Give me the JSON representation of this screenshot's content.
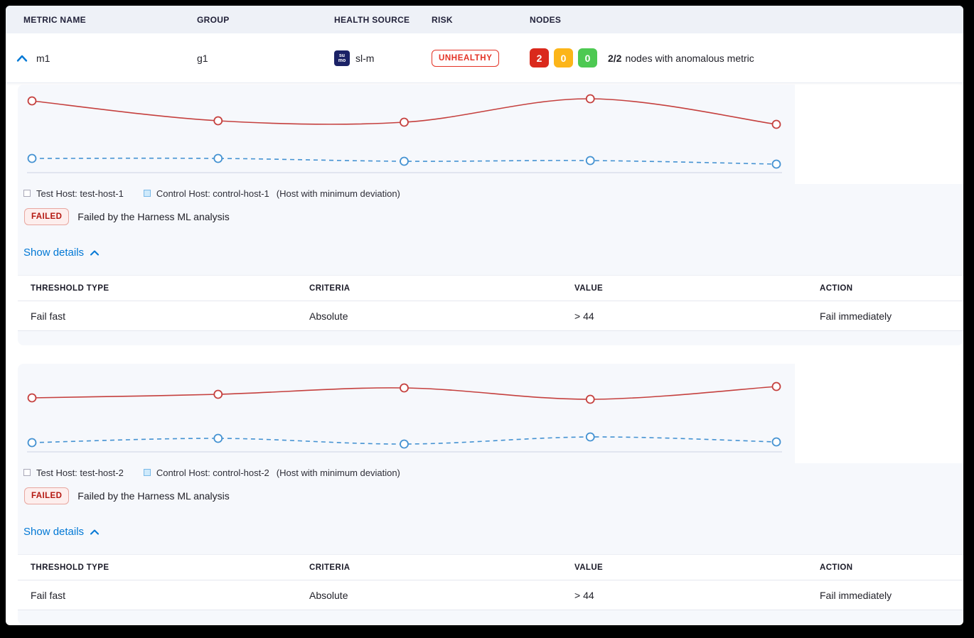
{
  "table_header": {
    "metric_name": "METRIC NAME",
    "group": "GROUP",
    "health_source": "HEALTH SOURCE",
    "risk": "RISK",
    "nodes": "NODES"
  },
  "row": {
    "metric": "m1",
    "group": "g1",
    "health_source": {
      "label": "sl-m",
      "icon_line1": "su",
      "icon_line2": "mo",
      "icon_color": "#1b2266"
    },
    "risk": {
      "label": "UNHEALTHY",
      "color": "#e43326"
    },
    "nodes": {
      "counts": [
        {
          "value": "2",
          "color": "#da291c"
        },
        {
          "value": "0",
          "color": "#fcb519"
        },
        {
          "value": "0",
          "color": "#4dc952"
        }
      ],
      "summary_bold": "2/2",
      "summary_text": "nodes with anomalous metric"
    }
  },
  "sections": [
    {
      "legend": {
        "test_label": "Test Host: test-host-1",
        "control_label": "Control Host: control-host-1",
        "note": "(Host with minimum deviation)"
      },
      "status": {
        "badge": "FAILED",
        "message": "Failed by the Harness ML analysis"
      },
      "details_link": "Show details",
      "table": {
        "headers": [
          "THRESHOLD TYPE",
          "CRITERIA",
          "VALUE",
          "ACTION"
        ],
        "rows": [
          [
            "Fail fast",
            "Absolute",
            "> 44",
            "Fail immediately"
          ]
        ]
      }
    },
    {
      "legend": {
        "test_label": "Test Host: test-host-2",
        "control_label": "Control Host: control-host-2",
        "note": "(Host with minimum deviation)"
      },
      "status": {
        "badge": "FAILED",
        "message": "Failed by the Harness ML analysis"
      },
      "details_link": "Show details",
      "table": {
        "headers": [
          "THRESHOLD TYPE",
          "CRITERIA",
          "VALUE",
          "ACTION"
        ],
        "rows": [
          [
            "Fail fast",
            "Absolute",
            "> 44",
            "Fail immediately"
          ]
        ]
      }
    }
  ],
  "chart_data": [
    {
      "type": "line",
      "x": [
        1,
        2,
        3,
        4,
        5
      ],
      "series": [
        {
          "name": "Test Host: test-host-1",
          "color": "#c5403e",
          "style": "solid",
          "values": [
            101,
            73,
            71,
            104,
            68
          ]
        },
        {
          "name": "Control Host: control-host-1",
          "color": "#4492d2",
          "style": "dashed",
          "values": [
            20,
            20,
            16,
            17,
            12
          ]
        }
      ],
      "title": "",
      "xlabel": "",
      "ylabel": "",
      "ylim": [
        0,
        124
      ],
      "grid": false,
      "legend_position": "bottom"
    },
    {
      "type": "line",
      "x": [
        1,
        2,
        3,
        4,
        5
      ],
      "series": [
        {
          "name": "Test Host: test-host-2",
          "color": "#c5403e",
          "style": "solid",
          "values": [
            76,
            81,
            90,
            74,
            92
          ]
        },
        {
          "name": "Control Host: control-host-2",
          "color": "#4492d2",
          "style": "dashed",
          "values": [
            13,
            19,
            11,
            21,
            14
          ]
        }
      ],
      "title": "",
      "xlabel": "",
      "ylabel": "",
      "ylim": [
        0,
        124
      ],
      "grid": false,
      "legend_position": "bottom"
    }
  ],
  "colors": {
    "accent_blue": "#0278d5",
    "axis_line": "#ccd2e3"
  }
}
